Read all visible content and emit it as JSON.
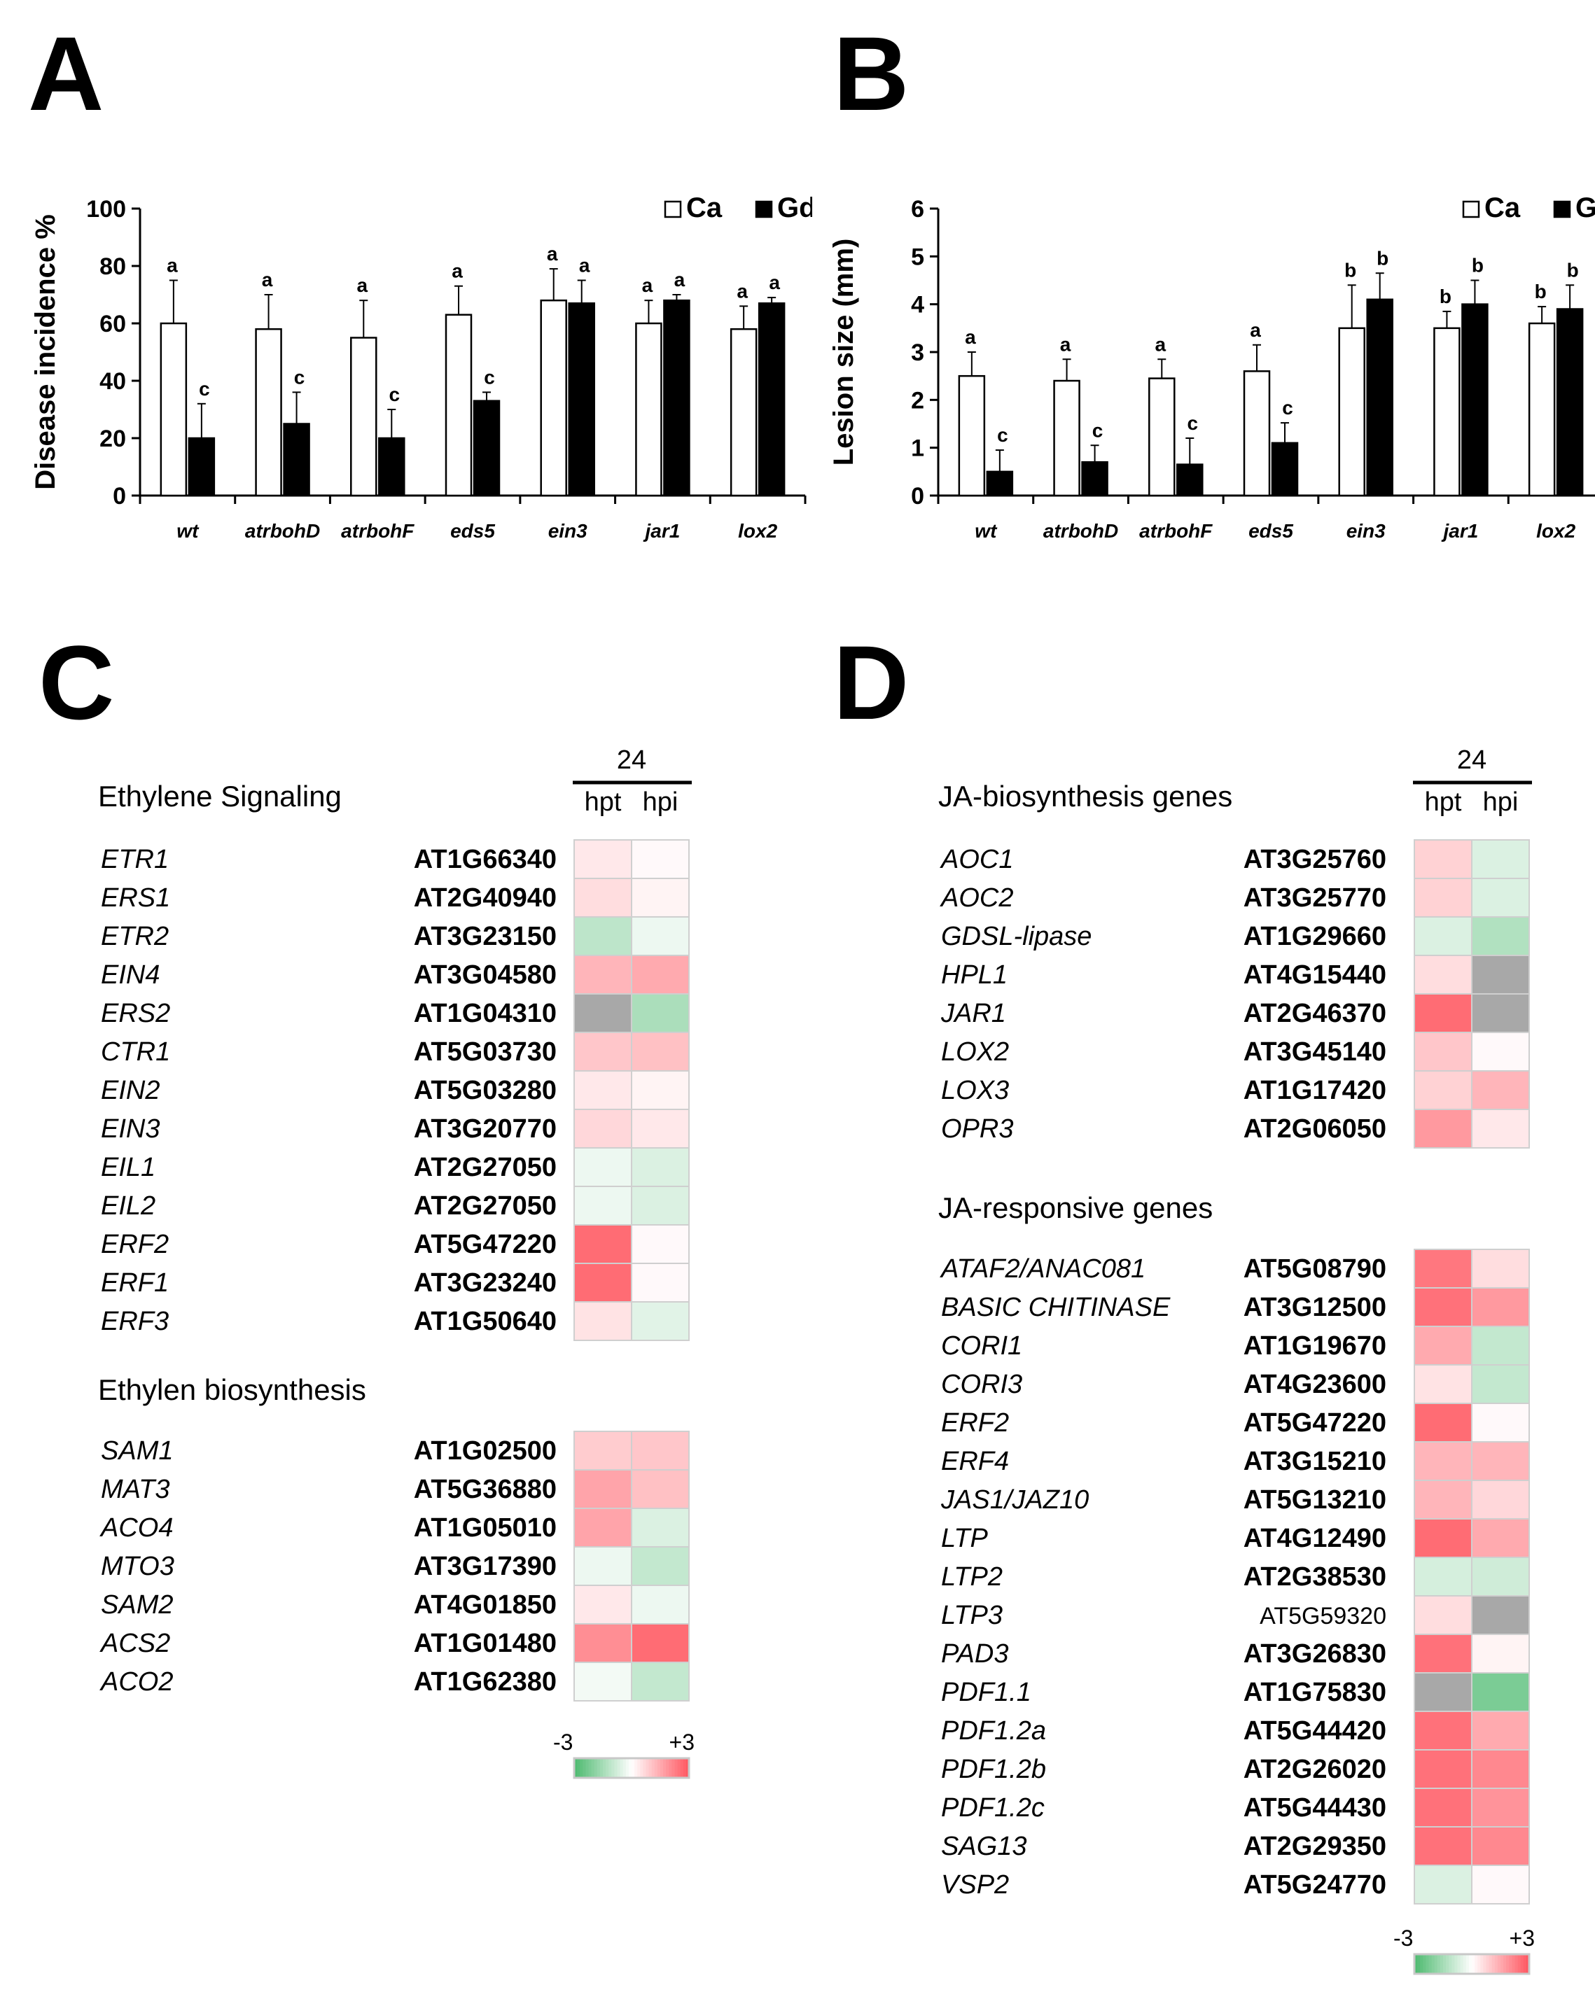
{
  "panels": {
    "A": "A",
    "B": "B",
    "C": "C",
    "D": "D"
  },
  "chart_data": [
    {
      "type": "bar",
      "panel": "A",
      "ylabel": "Disease incidence %",
      "ylim": [
        0,
        100
      ],
      "yticks": [
        0,
        20,
        40,
        60,
        80,
        100
      ],
      "categories": [
        "wt",
        "atrbohD",
        "atrbohF",
        "eds5",
        "ein3",
        "jar1",
        "lox2"
      ],
      "series": [
        {
          "name": "Ca",
          "color": "#ffffff",
          "values": [
            60,
            58,
            55,
            63,
            68,
            60,
            58
          ],
          "errors": [
            15,
            12,
            13,
            10,
            11,
            8,
            8
          ],
          "letters": [
            "a",
            "a",
            "a",
            "a",
            "a",
            "a",
            "a"
          ]
        },
        {
          "name": "Gd",
          "color": "#000000",
          "values": [
            20,
            25,
            20,
            33,
            67,
            68,
            67
          ],
          "errors": [
            12,
            11,
            10,
            3,
            8,
            2,
            2
          ],
          "letters": [
            "c",
            "c",
            "c",
            "c",
            "a",
            "a",
            "a"
          ]
        }
      ],
      "legend": [
        "Ca",
        "Gd"
      ]
    },
    {
      "type": "bar",
      "panel": "B",
      "ylabel": "Lesion size (mm)",
      "ylim": [
        0,
        6
      ],
      "yticks": [
        0,
        1,
        2,
        3,
        4,
        5,
        6
      ],
      "categories": [
        "wt",
        "atrbohD",
        "atrbohF",
        "eds5",
        "ein3",
        "jar1",
        "lox2"
      ],
      "series": [
        {
          "name": "Ca",
          "color": "#ffffff",
          "values": [
            2.5,
            2.4,
            2.45,
            2.6,
            3.5,
            3.5,
            3.6
          ],
          "errors": [
            0.5,
            0.45,
            0.4,
            0.55,
            0.9,
            0.35,
            0.35
          ],
          "letters": [
            "a",
            "a",
            "a",
            "a",
            "b",
            "b",
            "b"
          ]
        },
        {
          "name": "Gd",
          "color": "#000000",
          "values": [
            0.5,
            0.7,
            0.65,
            1.1,
            4.1,
            4.0,
            3.9
          ],
          "errors": [
            0.45,
            0.35,
            0.55,
            0.42,
            0.55,
            0.5,
            0.5
          ],
          "letters": [
            "c",
            "c",
            "c",
            "c",
            "b",
            "b",
            "b"
          ]
        }
      ],
      "legend": [
        "Ca",
        "Gd"
      ]
    },
    {
      "type": "heatmap",
      "panel": "C",
      "time_header": "24",
      "columns": [
        "hpt",
        "hpi"
      ],
      "scale_min": "-3",
      "scale_max": "+3",
      "groups": [
        {
          "title": "Ethylene Signaling",
          "rows": [
            {
              "gene": "ETR1",
              "id": "AT1G66340",
              "values": [
                0.4,
                0.1
              ]
            },
            {
              "gene": "ERS1",
              "id": "AT2G40940",
              "values": [
                0.6,
                0.2
              ]
            },
            {
              "gene": "ETR2",
              "id": "AT3G23150",
              "values": [
                -1.1,
                -0.3
              ]
            },
            {
              "gene": "EIN4",
              "id": "AT3G04580",
              "values": [
                1.3,
                1.5
              ]
            },
            {
              "gene": "ERS2",
              "id": "AT1G04310",
              "values": [
                null,
                -1.4
              ]
            },
            {
              "gene": "CTR1",
              "id": "AT5G03730",
              "values": [
                1.0,
                1.1
              ]
            },
            {
              "gene": "EIN2",
              "id": "AT5G03280",
              "values": [
                0.4,
                0.2
              ]
            },
            {
              "gene": "EIN3",
              "id": "AT3G20770",
              "values": [
                0.7,
                0.4
              ]
            },
            {
              "gene": "EIL1",
              "id": "AT2G27050",
              "values": [
                -0.3,
                -0.6
              ]
            },
            {
              "gene": "EIL2",
              "id": "AT2G27050",
              "values": [
                -0.3,
                -0.6
              ]
            },
            {
              "gene": "ERF2",
              "id": "AT5G47220",
              "values": [
                2.6,
                0.1
              ]
            },
            {
              "gene": "ERF1",
              "id": "AT3G23240",
              "values": [
                2.6,
                0.1
              ]
            },
            {
              "gene": "ERF3",
              "id": "AT1G50640",
              "values": [
                0.5,
                -0.5
              ]
            }
          ]
        },
        {
          "title": "Ethylen biosynthesis",
          "rows": [
            {
              "gene": "SAM1",
              "id": "AT1G02500",
              "values": [
                0.9,
                1.0
              ]
            },
            {
              "gene": "MAT3",
              "id": "AT5G36880",
              "values": [
                1.6,
                1.1
              ]
            },
            {
              "gene": "ACO4",
              "id": "AT1G05010",
              "values": [
                1.6,
                -0.6
              ]
            },
            {
              "gene": "MTO3",
              "id": "AT3G17390",
              "values": [
                -0.3,
                -1.0
              ]
            },
            {
              "gene": "SAM2",
              "id": "AT4G01850",
              "values": [
                0.4,
                -0.3
              ]
            },
            {
              "gene": "ACS2",
              "id": "AT1G01480",
              "values": [
                2.0,
                2.6
              ]
            },
            {
              "gene": "ACO2",
              "id": "AT1G62380",
              "values": [
                -0.2,
                -1.0
              ]
            }
          ]
        }
      ]
    },
    {
      "type": "heatmap",
      "panel": "D",
      "time_header": "24",
      "columns": [
        "hpt",
        "hpi"
      ],
      "scale_min": "-3",
      "scale_max": "+3",
      "groups": [
        {
          "title": "JA-biosynthesis genes",
          "rows": [
            {
              "gene": "AOC1",
              "id": "AT3G25760",
              "values": [
                0.8,
                -0.6
              ]
            },
            {
              "gene": "AOC2",
              "id": "AT3G25770",
              "values": [
                0.8,
                -0.6
              ]
            },
            {
              "gene": "GDSL-lipase",
              "id": "AT1G29660",
              "values": [
                -0.6,
                -1.3
              ]
            },
            {
              "gene": "HPL1",
              "id": "AT4G15440",
              "values": [
                0.6,
                null
              ]
            },
            {
              "gene": "JAR1",
              "id": "AT2G46370",
              "values": [
                2.6,
                null
              ]
            },
            {
              "gene": "LOX2",
              "id": "AT3G45140",
              "values": [
                1.0,
                0.1
              ]
            },
            {
              "gene": "LOX3",
              "id": "AT1G17420",
              "values": [
                0.8,
                1.3
              ]
            },
            {
              "gene": "OPR3",
              "id": "AT2G06050",
              "values": [
                1.8,
                0.4
              ]
            }
          ]
        },
        {
          "title": "JA-responsive genes",
          "rows": [
            {
              "gene": "ATAF2/ANAC081",
              "id": "AT5G08790",
              "values": [
                2.4,
                0.6
              ]
            },
            {
              "gene": "BASIC CHITINASE",
              "id": "AT3G12500",
              "values": [
                2.5,
                1.8
              ]
            },
            {
              "gene": "CORI1",
              "id": "AT1G19670",
              "values": [
                1.5,
                -1.0
              ]
            },
            {
              "gene": "CORI3",
              "id": "AT4G23600",
              "values": [
                0.5,
                -1.0
              ]
            },
            {
              "gene": "ERF2",
              "id": "AT5G47220",
              "values": [
                2.6,
                0.1
              ]
            },
            {
              "gene": "ERF4",
              "id": "AT3G15210",
              "values": [
                1.3,
                1.3
              ]
            },
            {
              "gene": "JAS1/JAZ10",
              "id": "AT5G13210",
              "values": [
                1.3,
                0.7
              ]
            },
            {
              "gene": "LTP",
              "id": "AT4G12490",
              "values": [
                2.6,
                1.5
              ]
            },
            {
              "gene": "LTP2",
              "id": "AT2G38530",
              "values": [
                -0.7,
                -0.8
              ]
            },
            {
              "gene": "LTP3",
              "id": "AT5G59320",
              "values": [
                0.6,
                null
              ],
              "plain_id": true
            },
            {
              "gene": "PAD3",
              "id": "AT3G26830",
              "values": [
                2.5,
                0.2
              ]
            },
            {
              "gene": "PDF1.1",
              "id": "AT1G75830",
              "values": [
                null,
                -2.2
              ]
            },
            {
              "gene": "PDF1.2a",
              "id": "AT5G44420",
              "values": [
                2.5,
                1.5
              ]
            },
            {
              "gene": "PDF1.2b",
              "id": "AT2G26020",
              "values": [
                2.5,
                2.1
              ]
            },
            {
              "gene": "PDF1.2c",
              "id": "AT5G44430",
              "values": [
                2.5,
                1.9
              ]
            },
            {
              "gene": "SAG13",
              "id": "AT2G29350",
              "values": [
                2.5,
                2.1
              ]
            },
            {
              "gene": "VSP2",
              "id": "AT5G24770",
              "values": [
                -0.6,
                0.1
              ]
            }
          ]
        }
      ]
    }
  ]
}
